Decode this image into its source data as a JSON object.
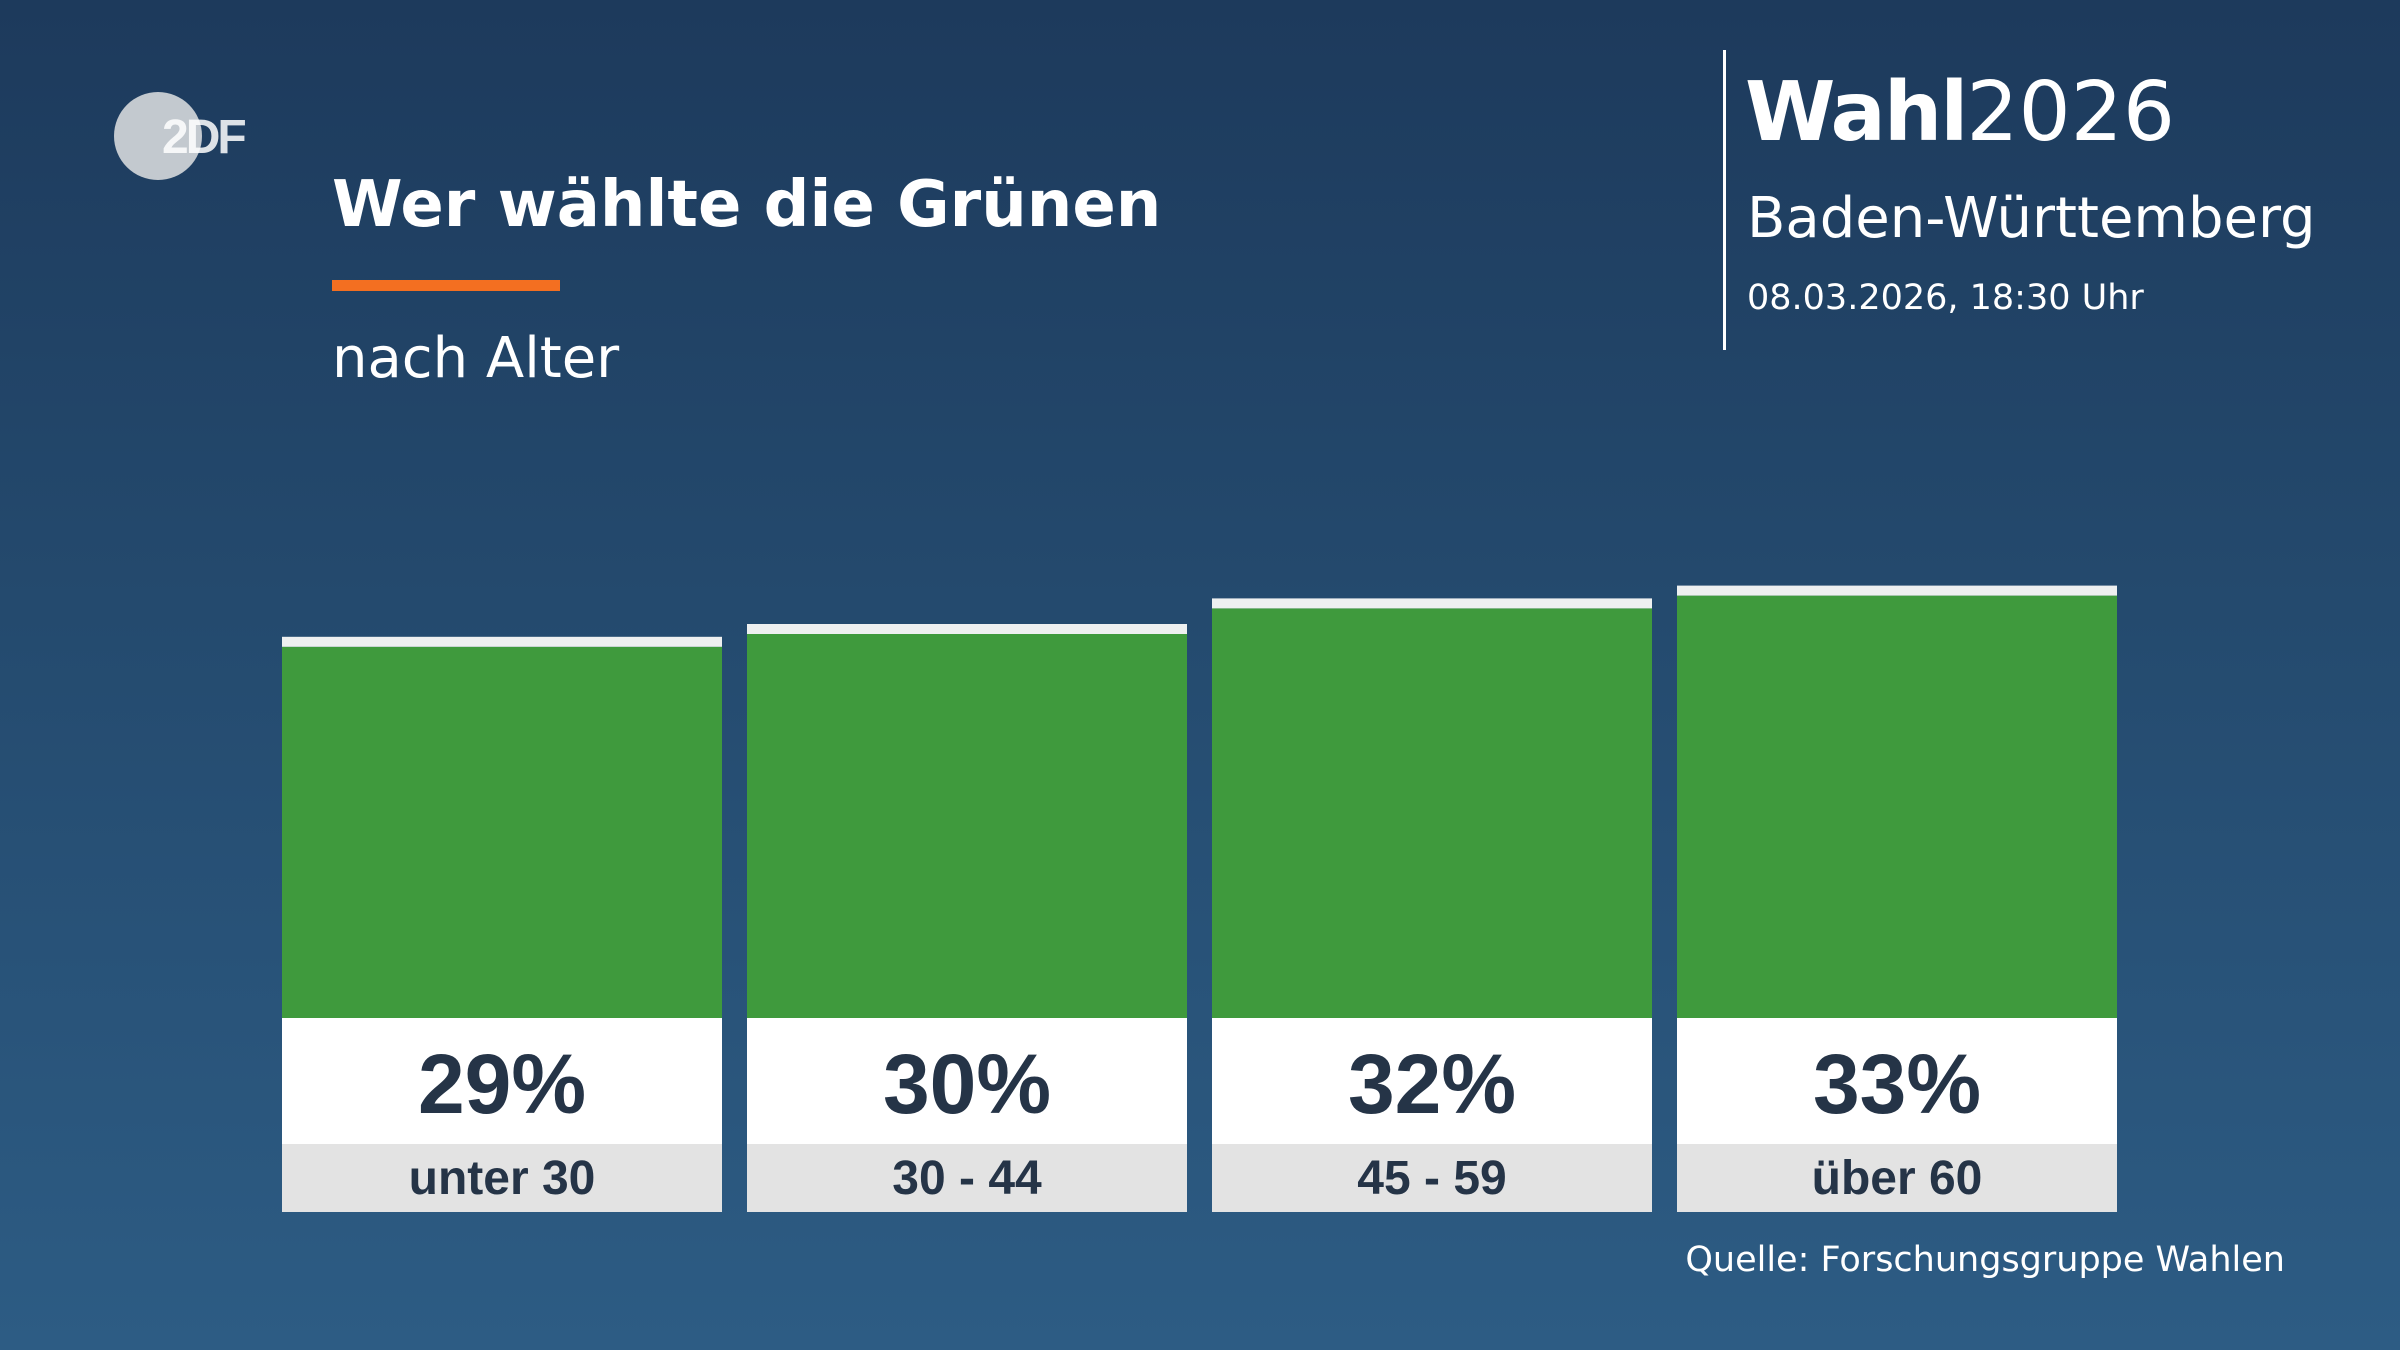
{
  "header": {
    "title": "Wer wählte die Grünen",
    "subtitle": "nach Alter",
    "accent_color": "#f36f21"
  },
  "logo": {
    "text": "2DF"
  },
  "brand": {
    "wahl": "Wahl",
    "year": "2026",
    "region": "Baden-Württemberg",
    "datetime": "08.03.2026, 18:30 Uhr"
  },
  "source": "Quelle: Forschungsgruppe Wahlen",
  "chart_data": {
    "type": "bar",
    "categories": [
      "unter 30",
      "30 - 44",
      "45 - 59",
      "über 60"
    ],
    "values": [
      29,
      30,
      32,
      33
    ],
    "value_labels": [
      "29%",
      "30%",
      "32%",
      "33%"
    ],
    "unit": "%",
    "ylim": [
      0,
      40
    ],
    "bar_color": "#3f9a3d",
    "grid": false,
    "legend": "none"
  }
}
